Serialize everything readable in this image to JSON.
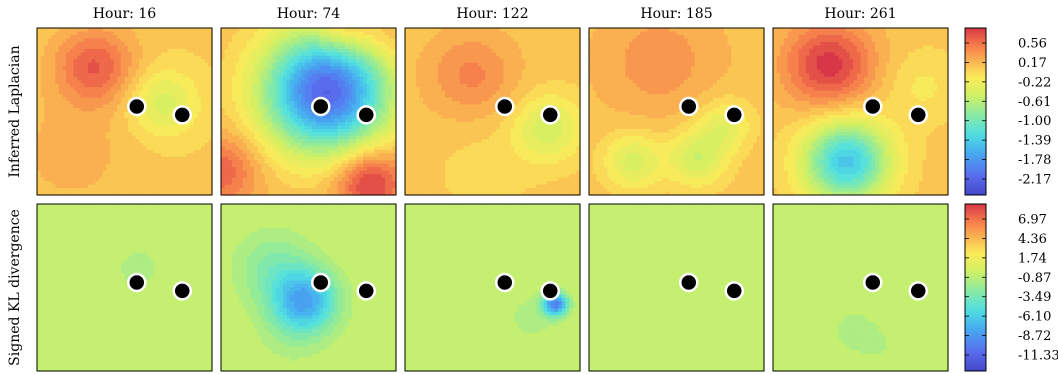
{
  "chart_data": {
    "type": "heatmap",
    "columns": [
      "Hour: 16",
      "Hour: 74",
      "Hour: 122",
      "Hour: 185",
      "Hour: 261"
    ],
    "rows": [
      {
        "ylabel": "Inferred Laplacian",
        "colorbar_ticks": [
          "0.56",
          "0.17",
          "-0.22",
          "-0.61",
          "-1.00",
          "-1.39",
          "-1.78",
          "-2.17"
        ],
        "range": [
          -2.4,
          0.8
        ],
        "panels": [
          {
            "base": 0.02,
            "blobs": [
              {
                "x": 0.33,
                "y": 0.23,
                "a": 0.6,
                "s": 0.16
              },
              {
                "x": 0.72,
                "y": 0.45,
                "a": -0.45,
                "s": 0.14
              },
              {
                "x": 0.2,
                "y": 0.75,
                "a": 0.15,
                "s": 0.25
              }
            ]
          },
          {
            "base": 0.1,
            "blobs": [
              {
                "x": 0.6,
                "y": 0.38,
                "a": -2.2,
                "s": 0.25
              },
              {
                "x": 0.85,
                "y": 0.92,
                "a": 0.75,
                "s": 0.14
              },
              {
                "x": 0.0,
                "y": 0.85,
                "a": 0.5,
                "s": 0.15
              },
              {
                "x": 0.7,
                "y": 0.0,
                "a": 0.45,
                "s": 0.12
              },
              {
                "x": 0.95,
                "y": 0.08,
                "a": 0.2,
                "s": 0.1
              }
            ]
          },
          {
            "base": 0.05,
            "blobs": [
              {
                "x": 0.38,
                "y": 0.28,
                "a": 0.35,
                "s": 0.18
              },
              {
                "x": 0.82,
                "y": 0.6,
                "a": -0.5,
                "s": 0.14
              },
              {
                "x": 0.45,
                "y": 0.85,
                "a": -0.1,
                "s": 0.2
              }
            ]
          },
          {
            "base": 0.08,
            "blobs": [
              {
                "x": 0.25,
                "y": 0.8,
                "a": -0.5,
                "s": 0.12
              },
              {
                "x": 0.62,
                "y": 0.78,
                "a": -0.55,
                "s": 0.12
              },
              {
                "x": 0.78,
                "y": 0.58,
                "a": -0.4,
                "s": 0.11
              },
              {
                "x": 0.4,
                "y": 0.2,
                "a": 0.25,
                "s": 0.22
              }
            ]
          },
          {
            "base": 0.05,
            "blobs": [
              {
                "x": 0.32,
                "y": 0.22,
                "a": 0.75,
                "s": 0.18
              },
              {
                "x": 0.42,
                "y": 0.8,
                "a": -1.45,
                "s": 0.17
              },
              {
                "x": 0.85,
                "y": 0.35,
                "a": -0.2,
                "s": 0.15
              }
            ]
          }
        ]
      },
      {
        "ylabel": "Signed KL divergence",
        "colorbar_ticks": [
          "6.97",
          "4.36",
          "1.74",
          "-0.87",
          "-3.49",
          "-6.10",
          "-8.72",
          "-11.33"
        ],
        "range": [
          -12.5,
          8.5
        ],
        "panels": [
          {
            "base": 0.0,
            "blobs": [
              {
                "x": 0.58,
                "y": 0.38,
                "a": -1.0,
                "s": 0.12
              },
              {
                "x": 0.5,
                "y": 0.82,
                "a": -0.6,
                "s": 0.2
              }
            ]
          },
          {
            "base": 0.0,
            "blobs": [
              {
                "x": 0.48,
                "y": 0.58,
                "a": -7.0,
                "s": 0.13
              },
              {
                "x": 0.3,
                "y": 0.38,
                "a": -2.5,
                "s": 0.16
              },
              {
                "x": 0.4,
                "y": 0.78,
                "a": -1.0,
                "s": 0.15
              }
            ]
          },
          {
            "base": 0.0,
            "blobs": [
              {
                "x": 0.86,
                "y": 0.6,
                "a": -9.0,
                "s": 0.05
              },
              {
                "x": 0.72,
                "y": 0.68,
                "a": -1.2,
                "s": 0.1
              }
            ]
          },
          {
            "base": 0.0,
            "blobs": [
              {
                "x": 0.3,
                "y": 0.72,
                "a": -0.5,
                "s": 0.16
              },
              {
                "x": 0.55,
                "y": 0.92,
                "a": -0.5,
                "s": 0.12
              }
            ]
          },
          {
            "base": 0.0,
            "blobs": [
              {
                "x": 0.45,
                "y": 0.75,
                "a": -0.9,
                "s": 0.15
              },
              {
                "x": 0.65,
                "y": 0.88,
                "a": -0.5,
                "s": 0.12
              }
            ]
          }
        ]
      }
    ],
    "markers": [
      {
        "x": 0.57,
        "y": 0.47
      },
      {
        "x": 0.83,
        "y": 0.52
      }
    ]
  }
}
